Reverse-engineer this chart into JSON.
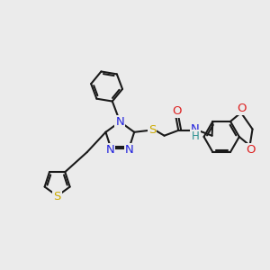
{
  "background_color": "#ebebeb",
  "bond_color": "#1a1a1a",
  "atom_colors": {
    "N": "#2222dd",
    "O": "#dd2222",
    "S_yellow": "#ccaa00",
    "S_black": "#1a1a1a",
    "H": "#2a9090",
    "C": "#1a1a1a"
  },
  "lw": 1.5,
  "font_size": 9.5
}
